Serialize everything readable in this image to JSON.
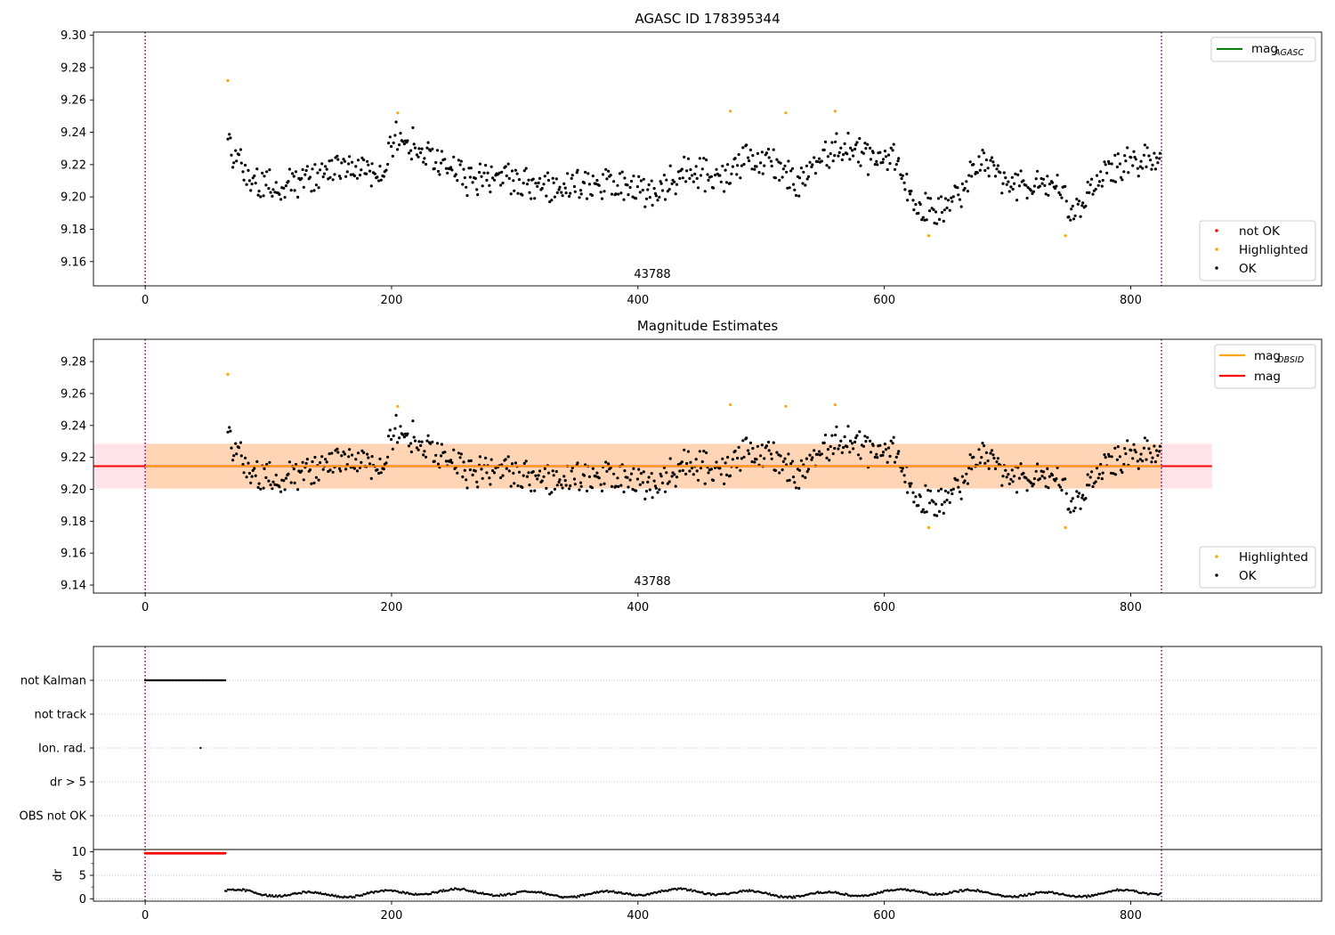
{
  "chart_data": [
    {
      "type": "scatter",
      "title": "AGASC ID 178395344",
      "xlim": [
        -42,
        955
      ],
      "ylim": [
        9.145,
        9.302
      ],
      "xticks": [
        0,
        200,
        400,
        600,
        800
      ],
      "yticks": [
        9.16,
        9.18,
        9.2,
        9.22,
        9.24,
        9.26,
        9.28,
        9.3
      ],
      "yfmt": 2,
      "vlines": [
        0,
        825
      ],
      "annotation": {
        "text": "43788",
        "x": 412
      },
      "legend_top": {
        "label": "mag",
        "sub": "AGASC",
        "color": "#008000"
      },
      "legend_bottom": [
        {
          "label": "not OK",
          "color": "#ff0000"
        },
        {
          "label": "Highlighted",
          "color": "#ffa500"
        },
        {
          "label": "OK",
          "color": "#000000"
        }
      ],
      "series": [
        {
          "name": "Highlighted",
          "color": "#ffa500",
          "x": [
            67,
            205,
            475,
            520,
            560,
            636,
            747
          ],
          "y": [
            9.272,
            9.252,
            9.253,
            9.252,
            9.253,
            9.176,
            9.176
          ]
        }
      ],
      "ok_trend": {
        "x": [
          67,
          85,
          105,
          125,
          150,
          175,
          190,
          205,
          225,
          245,
          265,
          290,
          320,
          350,
          380,
          410,
          440,
          470,
          490,
          510,
          530,
          550,
          570,
          590,
          610,
          625,
          640,
          660,
          680,
          700,
          720,
          740,
          755,
          770,
          790,
          810,
          825
        ],
        "y": [
          9.23,
          9.212,
          9.205,
          9.21,
          9.216,
          9.218,
          9.212,
          9.238,
          9.23,
          9.217,
          9.21,
          9.212,
          9.205,
          9.207,
          9.208,
          9.203,
          9.215,
          9.212,
          9.225,
          9.222,
          9.208,
          9.225,
          9.232,
          9.222,
          9.225,
          9.195,
          9.19,
          9.202,
          9.225,
          9.205,
          9.21,
          9.205,
          9.19,
          9.208,
          9.22,
          9.222,
          9.225
        ],
        "scatter": 0.009
      }
    },
    {
      "type": "scatter",
      "title": "Magnitude Estimates",
      "xlim": [
        -42,
        955
      ],
      "ylim": [
        9.135,
        9.294
      ],
      "xticks": [
        0,
        200,
        400,
        600,
        800
      ],
      "yticks": [
        9.14,
        9.16,
        9.18,
        9.2,
        9.22,
        9.24,
        9.26,
        9.28
      ],
      "yfmt": 2,
      "vlines": [
        0,
        825
      ],
      "annotation": {
        "text": "43788",
        "x": 412
      },
      "mag": 9.2145,
      "band_outer": [
        9.2005,
        9.2285
      ],
      "band_inner": [
        9.2005,
        9.2285
      ],
      "band_xmax": 866,
      "inner_xrange": [
        0,
        825
      ],
      "legend_top": [
        {
          "label": "mag",
          "sub": "OBSID",
          "color": "#ffa500"
        },
        {
          "label": "mag",
          "sub": "",
          "color": "#ff0000"
        }
      ],
      "legend_bottom": [
        {
          "label": "Highlighted",
          "color": "#ffa500"
        },
        {
          "label": "OK",
          "color": "#000000"
        }
      ],
      "series": [
        {
          "name": "Highlighted",
          "color": "#ffa500",
          "x": [
            67,
            205,
            475,
            520,
            560,
            636,
            747
          ],
          "y": [
            9.272,
            9.252,
            9.253,
            9.252,
            9.253,
            9.176,
            9.176
          ]
        }
      ]
    },
    {
      "type": "scatter",
      "xlim": [
        -42,
        955
      ],
      "categories": [
        "not Kalman",
        "not track",
        "Ion. rad.",
        "dr > 5",
        "OBS not OK"
      ],
      "vlines": [
        0,
        825
      ],
      "flags": {
        "not Kalman": {
          "range": [
            0,
            65
          ]
        },
        "Ion. rad.": {
          "points": [
            45
          ]
        }
      }
    },
    {
      "type": "scatter",
      "xlim": [
        -42,
        955
      ],
      "ylim": [
        -0.5,
        10.5
      ],
      "xticks": [
        0,
        200,
        400,
        600,
        800
      ],
      "yticks": [
        0,
        5,
        10
      ],
      "ylabel": "dr",
      "vlines": [
        0,
        825
      ],
      "clipped": {
        "range": [
          0,
          65
        ],
        "value": 9.7,
        "color": "#ff0000"
      }
    }
  ]
}
